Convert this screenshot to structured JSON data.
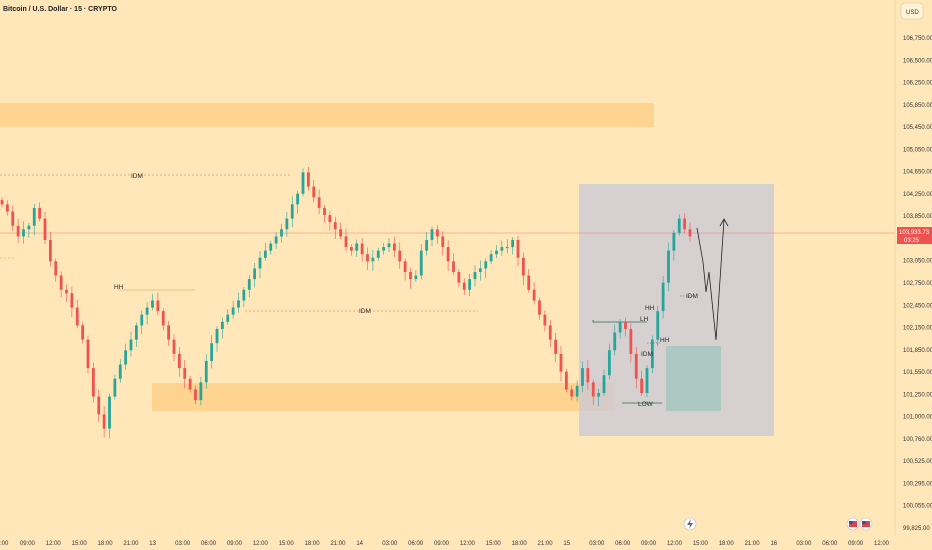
{
  "header": {
    "title": "Bitcoin / U.S. Dollar · 15 · CRYPTO",
    "currency_button": "USD"
  },
  "price_badge": {
    "price": "103,933.73",
    "countdown": "03:25"
  },
  "colors": {
    "background": "#FFE7BA",
    "up_candle": "#26A69A",
    "down_candle": "#EF5350",
    "zone": "#FFCF88",
    "box": "#C8C8D8",
    "accumulation": "#A6C7C0"
  },
  "annotations": {
    "idm_top": "IDM",
    "idm_mid": "IDM",
    "idm_right": "IDM",
    "hh_left": "HH",
    "lh": "LH",
    "hh_box": "HH",
    "idm_box": "IDM",
    "hh_box2": "HH",
    "low": "LOW"
  },
  "chart_data": {
    "type": "candlestick",
    "title": "Bitcoin / U.S. Dollar · 15 · CRYPTO",
    "y_ticks": [
      "106,750.00",
      "106,500.00",
      "106,250.00",
      "105,850.00",
      "105,450.00",
      "105,050.00",
      "104,650.00",
      "104,250.00",
      "103,850.00",
      "103,450.00",
      "103,050.00",
      "102,750.00",
      "102,450.00",
      "102,150.00",
      "101,850.00",
      "101,550.00",
      "101,250.00",
      "101,000.00",
      "100,760.00",
      "100,525.00",
      "100,295.00",
      "100,055.00",
      "99,825.00"
    ],
    "x_ticks": [
      ":00",
      "09:00",
      "12:00",
      "15:00",
      "18:00",
      "21:00",
      "13",
      "03:00",
      "06:00",
      "09:00",
      "12:00",
      "15:00",
      "18:00",
      "21:00",
      "14",
      "03:00",
      "06:00",
      "09:00",
      "12:00",
      "15:00",
      "18:00",
      "21:00",
      "15",
      "03:00",
      "06:00",
      "09:00",
      "12:00",
      "15:00",
      "18:00",
      "21:00",
      "16",
      "03:00",
      "06:00",
      "09:00",
      "12:00"
    ],
    "current_price": 103933.73,
    "series": [
      {
        "values": [
          104400,
          104300,
          104100,
          103950,
          104050,
          104100,
          104350,
          104200,
          103900,
          103600,
          103400,
          103200,
          103150,
          102950,
          102700,
          102500,
          102100,
          101700,
          101450,
          101250,
          101700,
          101950,
          102150,
          102350,
          102500,
          102700,
          102850,
          102950,
          103050,
          102900,
          102700,
          102500,
          102300,
          102100,
          101950,
          101800,
          101650,
          101900,
          102200,
          102450,
          102650,
          102750,
          102850,
          102950,
          103050,
          103200,
          103350,
          103500,
          103650,
          103750,
          103850,
          103950,
          104050,
          104200,
          104400,
          104550,
          104850,
          104650,
          104500,
          104350,
          104250,
          104150,
          104050,
          103950,
          103800,
          103750,
          103850,
          103700,
          103600,
          103650,
          103750,
          103800,
          103850,
          103750,
          103600,
          103450,
          103350,
          103400,
          103750,
          103900,
          104050,
          103950,
          103800,
          103600,
          103450,
          103300,
          103200,
          103350,
          103450,
          103500,
          103600,
          103700,
          103750,
          103800,
          103800,
          103900,
          103650,
          103400,
          103200,
          103050,
          102850,
          102700,
          102500,
          102300,
          102050,
          101800,
          101700,
          101850,
          102100,
          101900,
          101700,
          101750,
          102000,
          102350,
          102600,
          102750,
          102650,
          102300,
          101950,
          101750,
          102100,
          102500,
          102900,
          103300,
          103750,
          104000,
          104200,
          104050,
          103950
        ]
      }
    ],
    "y_range": [
      99825,
      106850
    ]
  }
}
